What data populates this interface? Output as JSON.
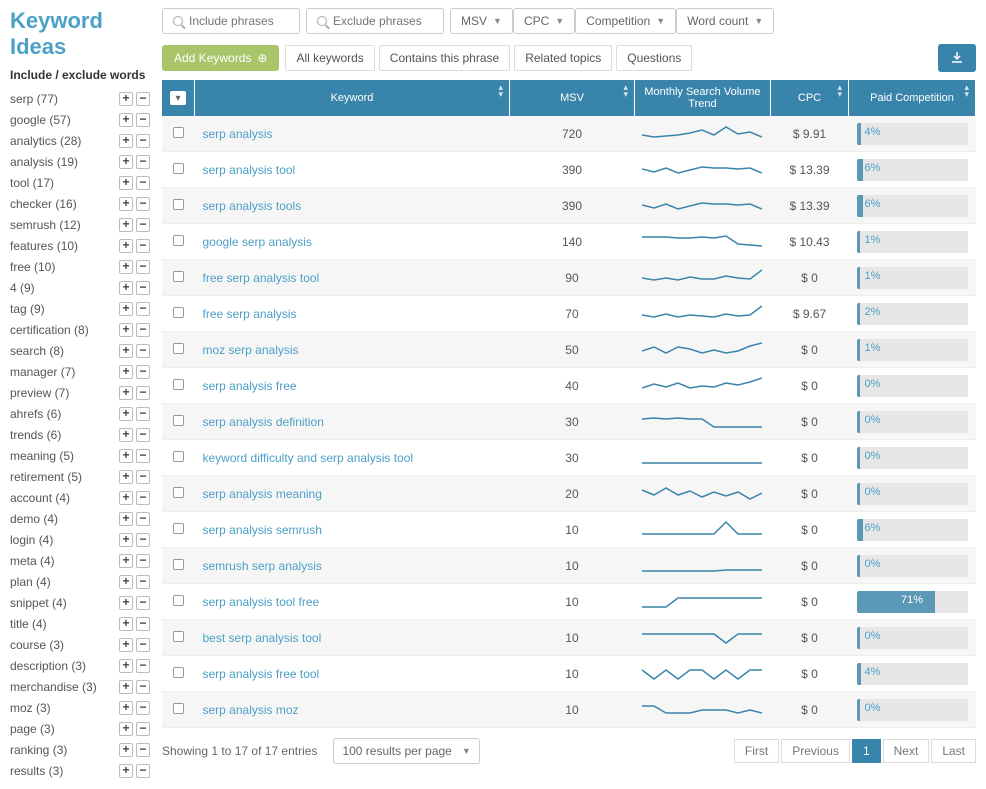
{
  "title": "Keyword Ideas",
  "sidebar": {
    "title": "Include / exclude words",
    "facets": [
      {
        "label": "serp",
        "count": 77
      },
      {
        "label": "google",
        "count": 57
      },
      {
        "label": "analytics",
        "count": 28
      },
      {
        "label": "analysis",
        "count": 19
      },
      {
        "label": "tool",
        "count": 17
      },
      {
        "label": "checker",
        "count": 16
      },
      {
        "label": "semrush",
        "count": 12
      },
      {
        "label": "features",
        "count": 10
      },
      {
        "label": "free",
        "count": 10
      },
      {
        "label": "4",
        "count": 9
      },
      {
        "label": "tag",
        "count": 9
      },
      {
        "label": "certification",
        "count": 8
      },
      {
        "label": "search",
        "count": 8
      },
      {
        "label": "manager",
        "count": 7
      },
      {
        "label": "preview",
        "count": 7
      },
      {
        "label": "ahrefs",
        "count": 6
      },
      {
        "label": "trends",
        "count": 6
      },
      {
        "label": "meaning",
        "count": 5
      },
      {
        "label": "retirement",
        "count": 5
      },
      {
        "label": "account",
        "count": 4
      },
      {
        "label": "demo",
        "count": 4
      },
      {
        "label": "login",
        "count": 4
      },
      {
        "label": "meta",
        "count": 4
      },
      {
        "label": "plan",
        "count": 4
      },
      {
        "label": "snippet",
        "count": 4
      },
      {
        "label": "title",
        "count": 4
      },
      {
        "label": "course",
        "count": 3
      },
      {
        "label": "description",
        "count": 3
      },
      {
        "label": "merchandise",
        "count": 3
      },
      {
        "label": "moz",
        "count": 3
      },
      {
        "label": "page",
        "count": 3
      },
      {
        "label": "ranking",
        "count": 3
      },
      {
        "label": "results",
        "count": 3
      }
    ]
  },
  "filters": {
    "include_placeholder": "Include phrases",
    "exclude_placeholder": "Exclude phrases",
    "dropdowns": [
      "MSV",
      "CPC",
      "Competition",
      "Word count"
    ]
  },
  "actions": {
    "add_label": "Add Keywords",
    "tabs": [
      "All keywords",
      "Contains this phrase",
      "Related topics",
      "Questions"
    ]
  },
  "columns": {
    "keyword": "Keyword",
    "msv": "MSV",
    "trend": "Monthly Search Volume Trend",
    "cpc": "CPC",
    "pc": "Paid Competition"
  },
  "rows": [
    {
      "kw": "serp analysis",
      "msv": 720,
      "cpc": "$ 9.91",
      "pc": 4,
      "spark": [
        14,
        16,
        15,
        14,
        12,
        9,
        14,
        6,
        13,
        11,
        16
      ]
    },
    {
      "kw": "serp analysis tool",
      "msv": 390,
      "cpc": "$ 13.39",
      "pc": 6,
      "spark": [
        12,
        15,
        11,
        16,
        13,
        10,
        11,
        11,
        12,
        11,
        16
      ]
    },
    {
      "kw": "serp analysis tools",
      "msv": 390,
      "cpc": "$ 13.39",
      "pc": 6,
      "spark": [
        12,
        15,
        11,
        16,
        13,
        10,
        11,
        11,
        12,
        11,
        16
      ]
    },
    {
      "kw": "google serp analysis",
      "msv": 140,
      "cpc": "$ 10.43",
      "pc": 1,
      "spark": [
        8,
        8,
        8,
        9,
        9,
        8,
        9,
        7,
        15,
        16,
        17
      ]
    },
    {
      "kw": "free serp analysis tool",
      "msv": 90,
      "cpc": "$ 0",
      "pc": 1,
      "spark": [
        13,
        15,
        13,
        15,
        12,
        14,
        14,
        11,
        13,
        14,
        5
      ]
    },
    {
      "kw": "free serp analysis",
      "msv": 70,
      "cpc": "$ 9.67",
      "pc": 2,
      "spark": [
        14,
        16,
        13,
        16,
        14,
        15,
        16,
        13,
        15,
        14,
        5
      ]
    },
    {
      "kw": "moz serp analysis",
      "msv": 50,
      "cpc": "$ 0",
      "pc": 1,
      "spark": [
        14,
        10,
        16,
        10,
        12,
        16,
        13,
        16,
        14,
        9,
        6
      ]
    },
    {
      "kw": "serp analysis free",
      "msv": 40,
      "cpc": "$ 0",
      "pc": 0,
      "spark": [
        15,
        11,
        14,
        10,
        15,
        13,
        14,
        10,
        12,
        9,
        5
      ]
    },
    {
      "kw": "serp analysis definition",
      "msv": 30,
      "cpc": "$ 0",
      "pc": 0,
      "spark": [
        10,
        9,
        10,
        9,
        10,
        10,
        18,
        18,
        18,
        18,
        18
      ]
    },
    {
      "kw": "keyword difficulty and serp analysis tool",
      "msv": 30,
      "cpc": "$ 0",
      "pc": 0,
      "spark": [
        18,
        18,
        18,
        18,
        18,
        18,
        18,
        18,
        18,
        18,
        18
      ]
    },
    {
      "kw": "serp analysis meaning",
      "msv": 20,
      "cpc": "$ 0",
      "pc": 0,
      "spark": [
        9,
        14,
        7,
        14,
        10,
        16,
        11,
        15,
        11,
        18,
        12
      ]
    },
    {
      "kw": "serp analysis semrush",
      "msv": 10,
      "cpc": "$ 0",
      "pc": 6,
      "spark": [
        17,
        17,
        17,
        17,
        17,
        17,
        17,
        5,
        17,
        17,
        17
      ]
    },
    {
      "kw": "semrush serp analysis",
      "msv": 10,
      "cpc": "$ 0",
      "pc": 0,
      "spark": [
        18,
        18,
        18,
        18,
        18,
        18,
        18,
        17,
        17,
        17,
        17
      ]
    },
    {
      "kw": "serp analysis tool free",
      "msv": 10,
      "cpc": "$ 0",
      "pc": 71,
      "spark": [
        18,
        18,
        18,
        9,
        9,
        9,
        9,
        9,
        9,
        9,
        9
      ]
    },
    {
      "kw": "best serp analysis tool",
      "msv": 10,
      "cpc": "$ 0",
      "pc": 0,
      "spark": [
        9,
        9,
        9,
        9,
        9,
        9,
        9,
        18,
        9,
        9,
        9
      ]
    },
    {
      "kw": "serp analysis free tool",
      "msv": 10,
      "cpc": "$ 0",
      "pc": 4,
      "spark": [
        9,
        18,
        9,
        18,
        9,
        9,
        18,
        9,
        18,
        9,
        9
      ]
    },
    {
      "kw": "serp analysis moz",
      "msv": 10,
      "cpc": "$ 0",
      "pc": 0,
      "spark": [
        9,
        9,
        16,
        16,
        16,
        13,
        13,
        13,
        16,
        13,
        16
      ]
    }
  ],
  "footer": {
    "showing": "Showing 1 to 17 of 17 entries",
    "per_page": "100 results per page",
    "pager": {
      "first": "First",
      "prev": "Previous",
      "current": "1",
      "next": "Next",
      "last": "Last"
    }
  },
  "colors": {
    "header": "#3984ab",
    "link": "#4da0c7",
    "add": "#a8c56a",
    "bar": "#5b99b7",
    "bar_bg": "#e7e7e7"
  }
}
